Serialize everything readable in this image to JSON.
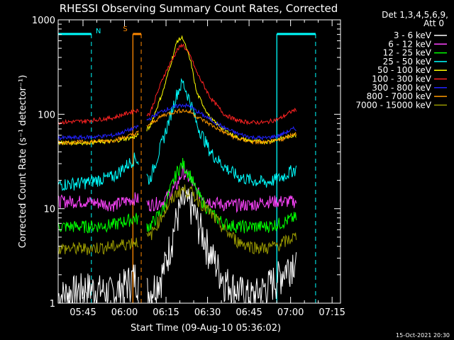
{
  "chart_data": {
    "type": "line",
    "title": "RHESSI Observing Summary Count Rates, Corrected",
    "xlabel": "Start Time (09-Aug-10 05:36:02)",
    "ylabel": "Corrected Count Rate (s⁻¹ detector⁻¹)",
    "yscale": "log",
    "ylim": [
      1,
      1000
    ],
    "xlim_minutes": [
      0,
      102
    ],
    "x_ticks": [
      "05:45",
      "06:00",
      "06:15",
      "06:30",
      "06:45",
      "07:00",
      "07:15"
    ],
    "y_ticks": [
      "1",
      "10",
      "100",
      "1000"
    ],
    "legend_header": [
      "Det 1,3,4,5,6,9,",
      "Att 0"
    ],
    "legend_position": "top-right",
    "timestamp": "15-Oct-2021 20:30",
    "colors": {
      "background": "#000000",
      "axes": "#ffffff",
      "night": "#00ffff",
      "saa": "#ff8800"
    },
    "segments_minutes": [
      [
        0,
        29
      ],
      [
        32,
        86
      ]
    ],
    "markers": {
      "night": {
        "label": "N",
        "color": "#00ffff",
        "bars": [
          [
            0,
            12
          ],
          [
            79,
            93
          ]
        ],
        "dashed_at": [
          12,
          93
        ],
        "solid_at": [
          79
        ]
      },
      "saa": {
        "label": "S",
        "color": "#ff8800",
        "bars": [
          [
            27,
            30
          ]
        ],
        "dashed_at": [
          30
        ],
        "solid_at": [
          27
        ]
      }
    },
    "series": [
      {
        "name": "3 - 6 keV",
        "color": "#ffffff",
        "x": [
          0,
          10,
          20,
          28,
          33,
          38,
          43,
          45,
          48,
          50,
          55,
          60,
          65,
          70,
          75,
          80,
          85
        ],
        "y": [
          1.2,
          1.5,
          1.3,
          2.0,
          1.3,
          2.2,
          8.5,
          12,
          11,
          8,
          3.5,
          1.8,
          1.4,
          1.2,
          1.5,
          2.0,
          3.0
        ]
      },
      {
        "name": "6 - 12 keV",
        "color": "#ff44ff",
        "x": [
          0,
          10,
          20,
          28,
          33,
          38,
          43,
          45,
          48,
          50,
          55,
          60,
          65,
          70,
          75,
          80,
          85
        ],
        "y": [
          12,
          12,
          11,
          13,
          11,
          12,
          18,
          25,
          20,
          15,
          12,
          11,
          11,
          11,
          12,
          12,
          12
        ]
      },
      {
        "name": "12 - 25 keV",
        "color": "#00ff00",
        "x": [
          0,
          10,
          20,
          28,
          33,
          38,
          43,
          45,
          48,
          50,
          55,
          60,
          65,
          70,
          75,
          80,
          85
        ],
        "y": [
          6.5,
          6.5,
          6.8,
          8,
          6.5,
          10,
          25,
          30,
          22,
          15,
          9,
          7,
          6.5,
          6.5,
          6.5,
          7,
          8
        ]
      },
      {
        "name": "25 - 50 keV",
        "color": "#00ffff",
        "x": [
          0,
          10,
          20,
          28,
          33,
          38,
          43,
          45,
          48,
          50,
          55,
          60,
          65,
          70,
          75,
          80,
          85
        ],
        "y": [
          18,
          19,
          22,
          35,
          20,
          55,
          170,
          220,
          130,
          80,
          40,
          28,
          22,
          20,
          19,
          21,
          26
        ]
      },
      {
        "name": "50 - 100 keV",
        "color": "#ffff00",
        "x": [
          0,
          10,
          20,
          28,
          33,
          38,
          43,
          45,
          48,
          50,
          55,
          60,
          65,
          70,
          75,
          80,
          85
        ],
        "y": [
          50,
          50,
          52,
          58,
          72,
          180,
          600,
          650,
          350,
          170,
          90,
          68,
          56,
          52,
          51,
          55,
          60
        ]
      },
      {
        "name": "100 - 300 keV",
        "color": "#ff2222",
        "x": [
          0,
          10,
          20,
          28,
          33,
          38,
          43,
          45,
          48,
          50,
          55,
          60,
          65,
          70,
          75,
          80,
          85
        ],
        "y": [
          82,
          85,
          92,
          110,
          100,
          250,
          480,
          550,
          400,
          280,
          150,
          100,
          85,
          82,
          82,
          90,
          110
        ]
      },
      {
        "name": "300 - 800 keV",
        "color": "#2222ff",
        "x": [
          0,
          10,
          20,
          28,
          33,
          38,
          43,
          45,
          48,
          50,
          55,
          60,
          65,
          70,
          75,
          80,
          85
        ],
        "y": [
          56,
          57,
          60,
          72,
          90,
          110,
          122,
          126,
          120,
          108,
          88,
          72,
          62,
          57,
          56,
          60,
          70
        ]
      },
      {
        "name": "800 - 7000 keV",
        "color": "#ff9900",
        "x": [
          0,
          10,
          20,
          28,
          33,
          38,
          43,
          45,
          48,
          50,
          55,
          60,
          65,
          70,
          75,
          80,
          85
        ],
        "y": [
          50,
          51,
          53,
          62,
          78,
          98,
          108,
          110,
          105,
          95,
          78,
          64,
          55,
          51,
          50,
          53,
          62
        ]
      },
      {
        "name": "7000 - 15000 keV",
        "color": "#999900",
        "x": [
          0,
          10,
          20,
          28,
          33,
          38,
          43,
          45,
          48,
          50,
          55,
          60,
          65,
          70,
          75,
          80,
          85
        ],
        "y": [
          3.8,
          3.8,
          4.0,
          4.5,
          5,
          9,
          15,
          16,
          15,
          13,
          9,
          6,
          4.5,
          4,
          3.8,
          4.2,
          5
        ]
      }
    ]
  }
}
